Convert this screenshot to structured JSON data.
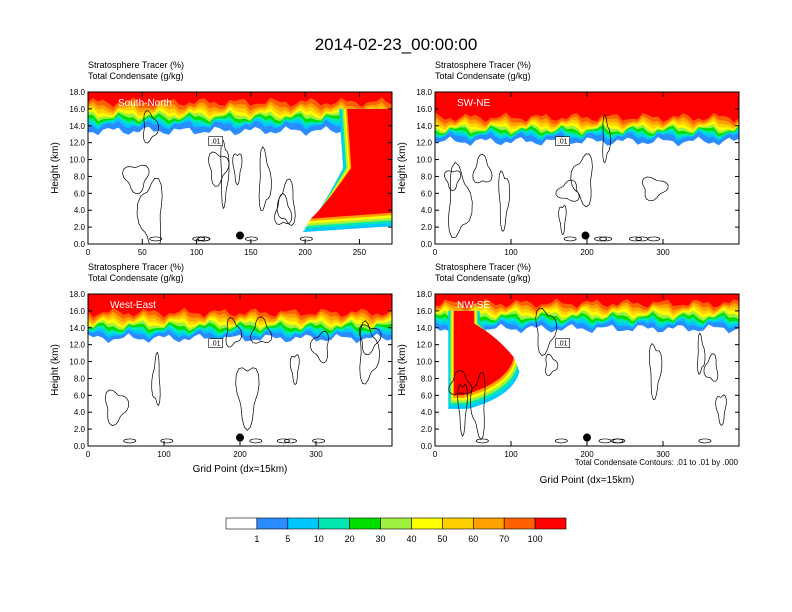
{
  "title": "2014-02-23_00:00:00",
  "colorbar": {
    "colors": [
      "#ffffff",
      "#2b8cff",
      "#00c8ff",
      "#00e8b0",
      "#00e000",
      "#a0f040",
      "#ffff00",
      "#ffd000",
      "#ffa000",
      "#ff6000",
      "#ff0000"
    ],
    "labels": [
      "1",
      "5",
      "10",
      "20",
      "30",
      "40",
      "50",
      "60",
      "70",
      "100"
    ]
  },
  "contour_note": "Total Condensate Contours: .01 to .01 by .000",
  "contour_label": ".01",
  "chart_data": [
    {
      "type": "heatmap",
      "panel": "South-North",
      "label_left": "Stratosphere Tracer   (%)",
      "label_left2": "Total Condensate   (g/kg)",
      "ylabel": "Height (km)",
      "xlabel": "",
      "xlim": [
        0,
        280
      ],
      "ylim": [
        0,
        18
      ],
      "xticks": [
        "0",
        "50",
        "100",
        "150",
        "200",
        "250"
      ],
      "yticks": [
        "0.0",
        "2.0",
        "4.0",
        "6.0",
        "8.0",
        "10.0",
        "12.0",
        "14.0",
        "16.0",
        "18.0"
      ],
      "marker_x": 140,
      "marker_y": 1.0,
      "tropopause_km": 16.2,
      "intrusion": {
        "x_start": 205,
        "x_end": 280,
        "top_km": 16.0,
        "bottom_km": 2.0
      }
    },
    {
      "type": "heatmap",
      "panel": "SW-NE",
      "label_left": "Stratosphere Tracer   (%)",
      "label_left2": "Total Condensate   (g/kg)",
      "ylabel": "Height (km)",
      "xlabel": "",
      "xlim": [
        0,
        400
      ],
      "ylim": [
        0,
        18
      ],
      "xticks": [
        "0",
        "100",
        "200",
        "300"
      ],
      "yticks": [
        "0.0",
        "2.0",
        "4.0",
        "6.0",
        "8.0",
        "10.0",
        "12.0",
        "14.0",
        "16.0",
        "18.0"
      ],
      "marker_x": 198,
      "marker_y": 1.0,
      "tropopause_km": 14.5
    },
    {
      "type": "heatmap",
      "panel": "West-East",
      "label_left": "Stratosphere Tracer   (%)",
      "label_left2": "Total Condensate   (g/kg)",
      "ylabel": "Height (km)",
      "xlabel": "Grid Point (dx=15km)",
      "xlim": [
        0,
        400
      ],
      "ylim": [
        0,
        18
      ],
      "xticks": [
        "0",
        "100",
        "200",
        "300"
      ],
      "yticks": [
        "0.0",
        "2.0",
        "4.0",
        "6.0",
        "8.0",
        "10.0",
        "12.0",
        "14.0",
        "16.0",
        "18.0"
      ],
      "marker_x": 200,
      "marker_y": 1.0,
      "tropopause_km": 15.5
    },
    {
      "type": "heatmap",
      "panel": "NW-SE",
      "label_left": "Stratosphere Tracer   (%)",
      "label_left2": "Total Condensate   (g/kg)",
      "ylabel": "Height (km)",
      "xlabel": "Grid Point (dx=15km)",
      "xlim": [
        0,
        400
      ],
      "ylim": [
        0,
        18
      ],
      "xticks": [
        "0",
        "100",
        "200",
        "300"
      ],
      "yticks": [
        "0.0",
        "2.0",
        "4.0",
        "6.0",
        "8.0",
        "10.0",
        "12.0",
        "14.0",
        "16.0",
        "18.0"
      ],
      "marker_x": 200,
      "marker_y": 1.0,
      "tropopause_km": 16.0,
      "intrusion": {
        "x_start": 25,
        "x_end": 100,
        "top_km": 16.0,
        "bottom_km": 5.0
      }
    }
  ]
}
